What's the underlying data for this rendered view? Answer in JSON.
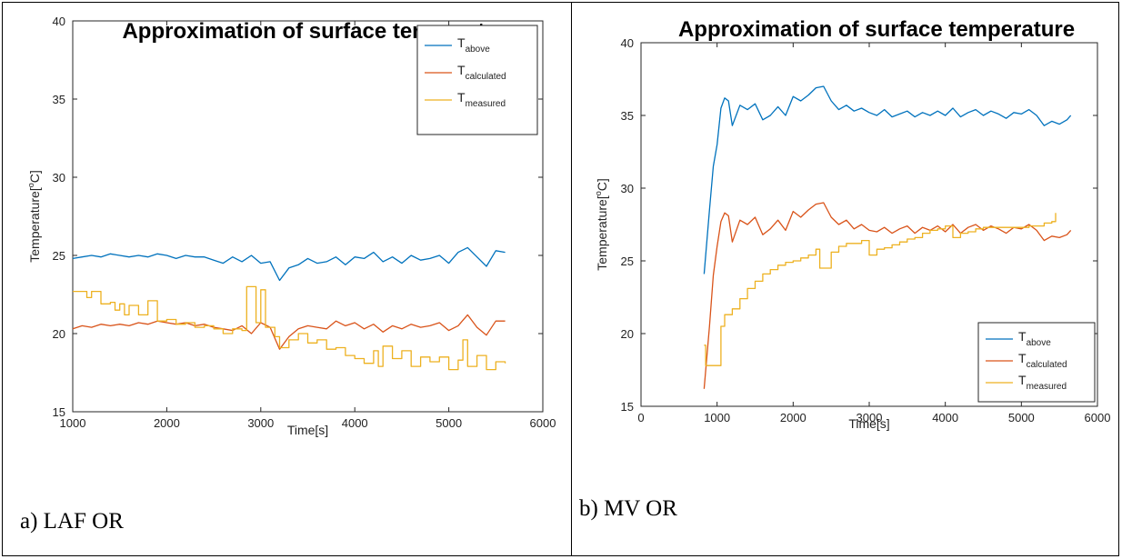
{
  "chart_data": [
    {
      "type": "line",
      "title": "Approximation of surface temperature",
      "xlabel": "Time[s]",
      "ylabel_main": "Temperature[",
      "ylabel_sup": "o",
      "ylabel_tail": "C]",
      "xlim": [
        1000,
        6000
      ],
      "ylim": [
        15,
        40
      ],
      "xticks": [
        "1000",
        "2000",
        "3000",
        "4000",
        "5000",
        "6000"
      ],
      "yticks": [
        "15",
        "20",
        "25",
        "30",
        "35",
        "40"
      ],
      "legend_position": "top-right",
      "caption": "a) LAF OR",
      "series": [
        {
          "name": "T",
          "sub": "above",
          "color": "#0072BD",
          "x": [
            1000,
            1100,
            1200,
            1300,
            1400,
            1500,
            1600,
            1700,
            1800,
            1900,
            2000,
            2100,
            2200,
            2300,
            2400,
            2500,
            2600,
            2700,
            2800,
            2900,
            3000,
            3100,
            3200,
            3300,
            3400,
            3500,
            3600,
            3700,
            3800,
            3900,
            4000,
            4100,
            4200,
            4300,
            4400,
            4500,
            4600,
            4700,
            4800,
            4900,
            5000,
            5100,
            5200,
            5300,
            5400,
            5500,
            5600
          ],
          "y": [
            24.8,
            24.9,
            25.0,
            24.9,
            25.1,
            25.0,
            24.9,
            25.0,
            24.9,
            25.1,
            25.0,
            24.8,
            25.0,
            24.9,
            24.9,
            24.7,
            24.5,
            24.9,
            24.6,
            25.0,
            24.5,
            24.6,
            23.4,
            24.2,
            24.4,
            24.8,
            24.5,
            24.6,
            24.9,
            24.4,
            24.9,
            24.8,
            25.2,
            24.6,
            24.9,
            24.5,
            25.0,
            24.7,
            24.8,
            25.0,
            24.5,
            25.2,
            25.5,
            24.9,
            24.3,
            25.3,
            25.2
          ]
        },
        {
          "name": "T",
          "sub": "calculated",
          "color": "#D95319",
          "x": [
            1000,
            1100,
            1200,
            1300,
            1400,
            1500,
            1600,
            1700,
            1800,
            1900,
            2000,
            2100,
            2200,
            2300,
            2400,
            2500,
            2600,
            2700,
            2800,
            2900,
            3000,
            3100,
            3200,
            3300,
            3400,
            3500,
            3600,
            3700,
            3800,
            3900,
            4000,
            4100,
            4200,
            4300,
            4400,
            4500,
            4600,
            4700,
            4800,
            4900,
            5000,
            5100,
            5200,
            5300,
            5400,
            5500,
            5600
          ],
          "y": [
            20.3,
            20.5,
            20.4,
            20.6,
            20.5,
            20.6,
            20.5,
            20.7,
            20.6,
            20.8,
            20.7,
            20.6,
            20.7,
            20.5,
            20.6,
            20.4,
            20.3,
            20.2,
            20.5,
            20.0,
            20.7,
            20.4,
            19.0,
            19.8,
            20.3,
            20.5,
            20.4,
            20.3,
            20.8,
            20.5,
            20.7,
            20.3,
            20.6,
            20.1,
            20.5,
            20.3,
            20.6,
            20.4,
            20.5,
            20.7,
            20.2,
            20.5,
            21.2,
            20.4,
            19.9,
            20.8,
            20.8
          ]
        },
        {
          "name": "T",
          "sub": "measured",
          "color": "#EDB120",
          "x": [
            1000,
            1150,
            1200,
            1300,
            1400,
            1450,
            1500,
            1550,
            1600,
            1700,
            1800,
            1900,
            2000,
            2100,
            2200,
            2300,
            2400,
            2500,
            2600,
            2700,
            2800,
            2850,
            2950,
            3000,
            3050,
            3150,
            3200,
            3300,
            3400,
            3500,
            3600,
            3700,
            3800,
            3900,
            4000,
            4100,
            4200,
            4250,
            4300,
            4400,
            4500,
            4600,
            4700,
            4800,
            4900,
            5000,
            5100,
            5150,
            5200,
            5300,
            5400,
            5500,
            5600
          ],
          "y": [
            22.7,
            22.3,
            22.7,
            21.9,
            22.0,
            21.5,
            21.9,
            21.2,
            21.8,
            21.2,
            22.1,
            20.8,
            20.9,
            20.6,
            20.7,
            20.4,
            20.5,
            20.3,
            20.0,
            20.3,
            20.2,
            23.0,
            20.7,
            22.8,
            20.4,
            19.8,
            19.1,
            19.6,
            20.0,
            19.4,
            19.6,
            19.0,
            19.1,
            18.6,
            18.4,
            18.1,
            18.9,
            17.9,
            19.2,
            18.4,
            18.9,
            17.9,
            18.5,
            18.2,
            18.5,
            17.7,
            18.3,
            19.6,
            17.9,
            18.6,
            17.7,
            18.2,
            18.1
          ]
        }
      ]
    },
    {
      "type": "line",
      "title": "Approximation of surface temperature",
      "xlabel": "Time[s]",
      "ylabel_main": "Temperature[",
      "ylabel_sup": "o",
      "ylabel_tail": "C]",
      "xlim": [
        0,
        6000
      ],
      "ylim": [
        15,
        40
      ],
      "xticks": [
        "0",
        "1000",
        "2000",
        "3000",
        "4000",
        "5000",
        "6000"
      ],
      "yticks": [
        "15",
        "20",
        "25",
        "30",
        "35",
        "40"
      ],
      "legend_position": "bottom-right",
      "caption": "b) MV OR",
      "series": [
        {
          "name": "T",
          "sub": "above",
          "color": "#0072BD",
          "x": [
            830,
            900,
            950,
            1000,
            1050,
            1100,
            1150,
            1200,
            1300,
            1400,
            1500,
            1600,
            1700,
            1800,
            1900,
            2000,
            2100,
            2200,
            2300,
            2400,
            2500,
            2600,
            2700,
            2800,
            2900,
            3000,
            3100,
            3200,
            3300,
            3400,
            3500,
            3600,
            3700,
            3800,
            3900,
            4000,
            4100,
            4200,
            4300,
            4400,
            4500,
            4600,
            4700,
            4800,
            4900,
            5000,
            5100,
            5200,
            5300,
            5400,
            5500,
            5600,
            5650
          ],
          "y": [
            24.1,
            28.5,
            31.5,
            33.0,
            35.5,
            36.2,
            36.0,
            34.3,
            35.7,
            35.4,
            35.8,
            34.7,
            35.0,
            35.6,
            35.0,
            36.3,
            36.0,
            36.4,
            36.9,
            37.0,
            36.0,
            35.4,
            35.7,
            35.3,
            35.5,
            35.2,
            35.0,
            35.4,
            34.9,
            35.1,
            35.3,
            34.9,
            35.2,
            35.0,
            35.3,
            35.0,
            35.5,
            34.9,
            35.2,
            35.4,
            35.0,
            35.3,
            35.1,
            34.8,
            35.2,
            35.1,
            35.4,
            35.0,
            34.3,
            34.6,
            34.4,
            34.7,
            35.0
          ]
        },
        {
          "name": "T",
          "sub": "calculated",
          "color": "#D95319",
          "x": [
            830,
            900,
            950,
            1000,
            1050,
            1100,
            1150,
            1200,
            1300,
            1400,
            1500,
            1600,
            1700,
            1800,
            1900,
            2000,
            2100,
            2200,
            2300,
            2400,
            2500,
            2600,
            2700,
            2800,
            2900,
            3000,
            3100,
            3200,
            3300,
            3400,
            3500,
            3600,
            3700,
            3800,
            3900,
            4000,
            4100,
            4200,
            4300,
            4400,
            4500,
            4600,
            4700,
            4800,
            4900,
            5000,
            5100,
            5200,
            5300,
            5400,
            5500,
            5600,
            5650
          ],
          "y": [
            16.2,
            20.5,
            24.0,
            26.0,
            27.7,
            28.3,
            28.1,
            26.3,
            27.8,
            27.5,
            28.0,
            26.8,
            27.2,
            27.8,
            27.1,
            28.4,
            28.0,
            28.5,
            28.9,
            29.0,
            28.0,
            27.5,
            27.8,
            27.2,
            27.5,
            27.1,
            27.0,
            27.3,
            26.9,
            27.2,
            27.4,
            26.9,
            27.3,
            27.1,
            27.4,
            27.0,
            27.5,
            26.9,
            27.3,
            27.5,
            27.1,
            27.4,
            27.2,
            26.9,
            27.3,
            27.2,
            27.5,
            27.1,
            26.4,
            26.7,
            26.6,
            26.8,
            27.1
          ]
        },
        {
          "name": "T",
          "sub": "measured",
          "color": "#EDB120",
          "x": [
            830,
            850,
            1000,
            1050,
            1100,
            1200,
            1300,
            1400,
            1500,
            1600,
            1700,
            1800,
            1900,
            2000,
            2100,
            2200,
            2300,
            2350,
            2500,
            2600,
            2700,
            2800,
            2900,
            3000,
            3100,
            3200,
            3300,
            3400,
            3500,
            3600,
            3700,
            3800,
            3900,
            4000,
            4100,
            4200,
            4300,
            4400,
            4500,
            4600,
            4700,
            4800,
            4900,
            5000,
            5100,
            5200,
            5300,
            5400,
            5450
          ],
          "y": [
            19.2,
            17.8,
            17.8,
            20.5,
            21.3,
            21.7,
            22.4,
            23.1,
            23.6,
            24.1,
            24.4,
            24.7,
            24.9,
            25.0,
            25.2,
            25.4,
            25.8,
            24.5,
            25.6,
            26.0,
            26.2,
            26.2,
            26.4,
            25.4,
            25.8,
            25.9,
            26.1,
            26.3,
            26.5,
            26.6,
            26.9,
            27.1,
            27.2,
            27.4,
            26.6,
            26.9,
            27.0,
            27.2,
            27.3,
            27.3,
            27.3,
            27.3,
            27.3,
            27.3,
            27.4,
            27.4,
            27.6,
            27.7,
            28.3
          ]
        }
      ]
    }
  ]
}
